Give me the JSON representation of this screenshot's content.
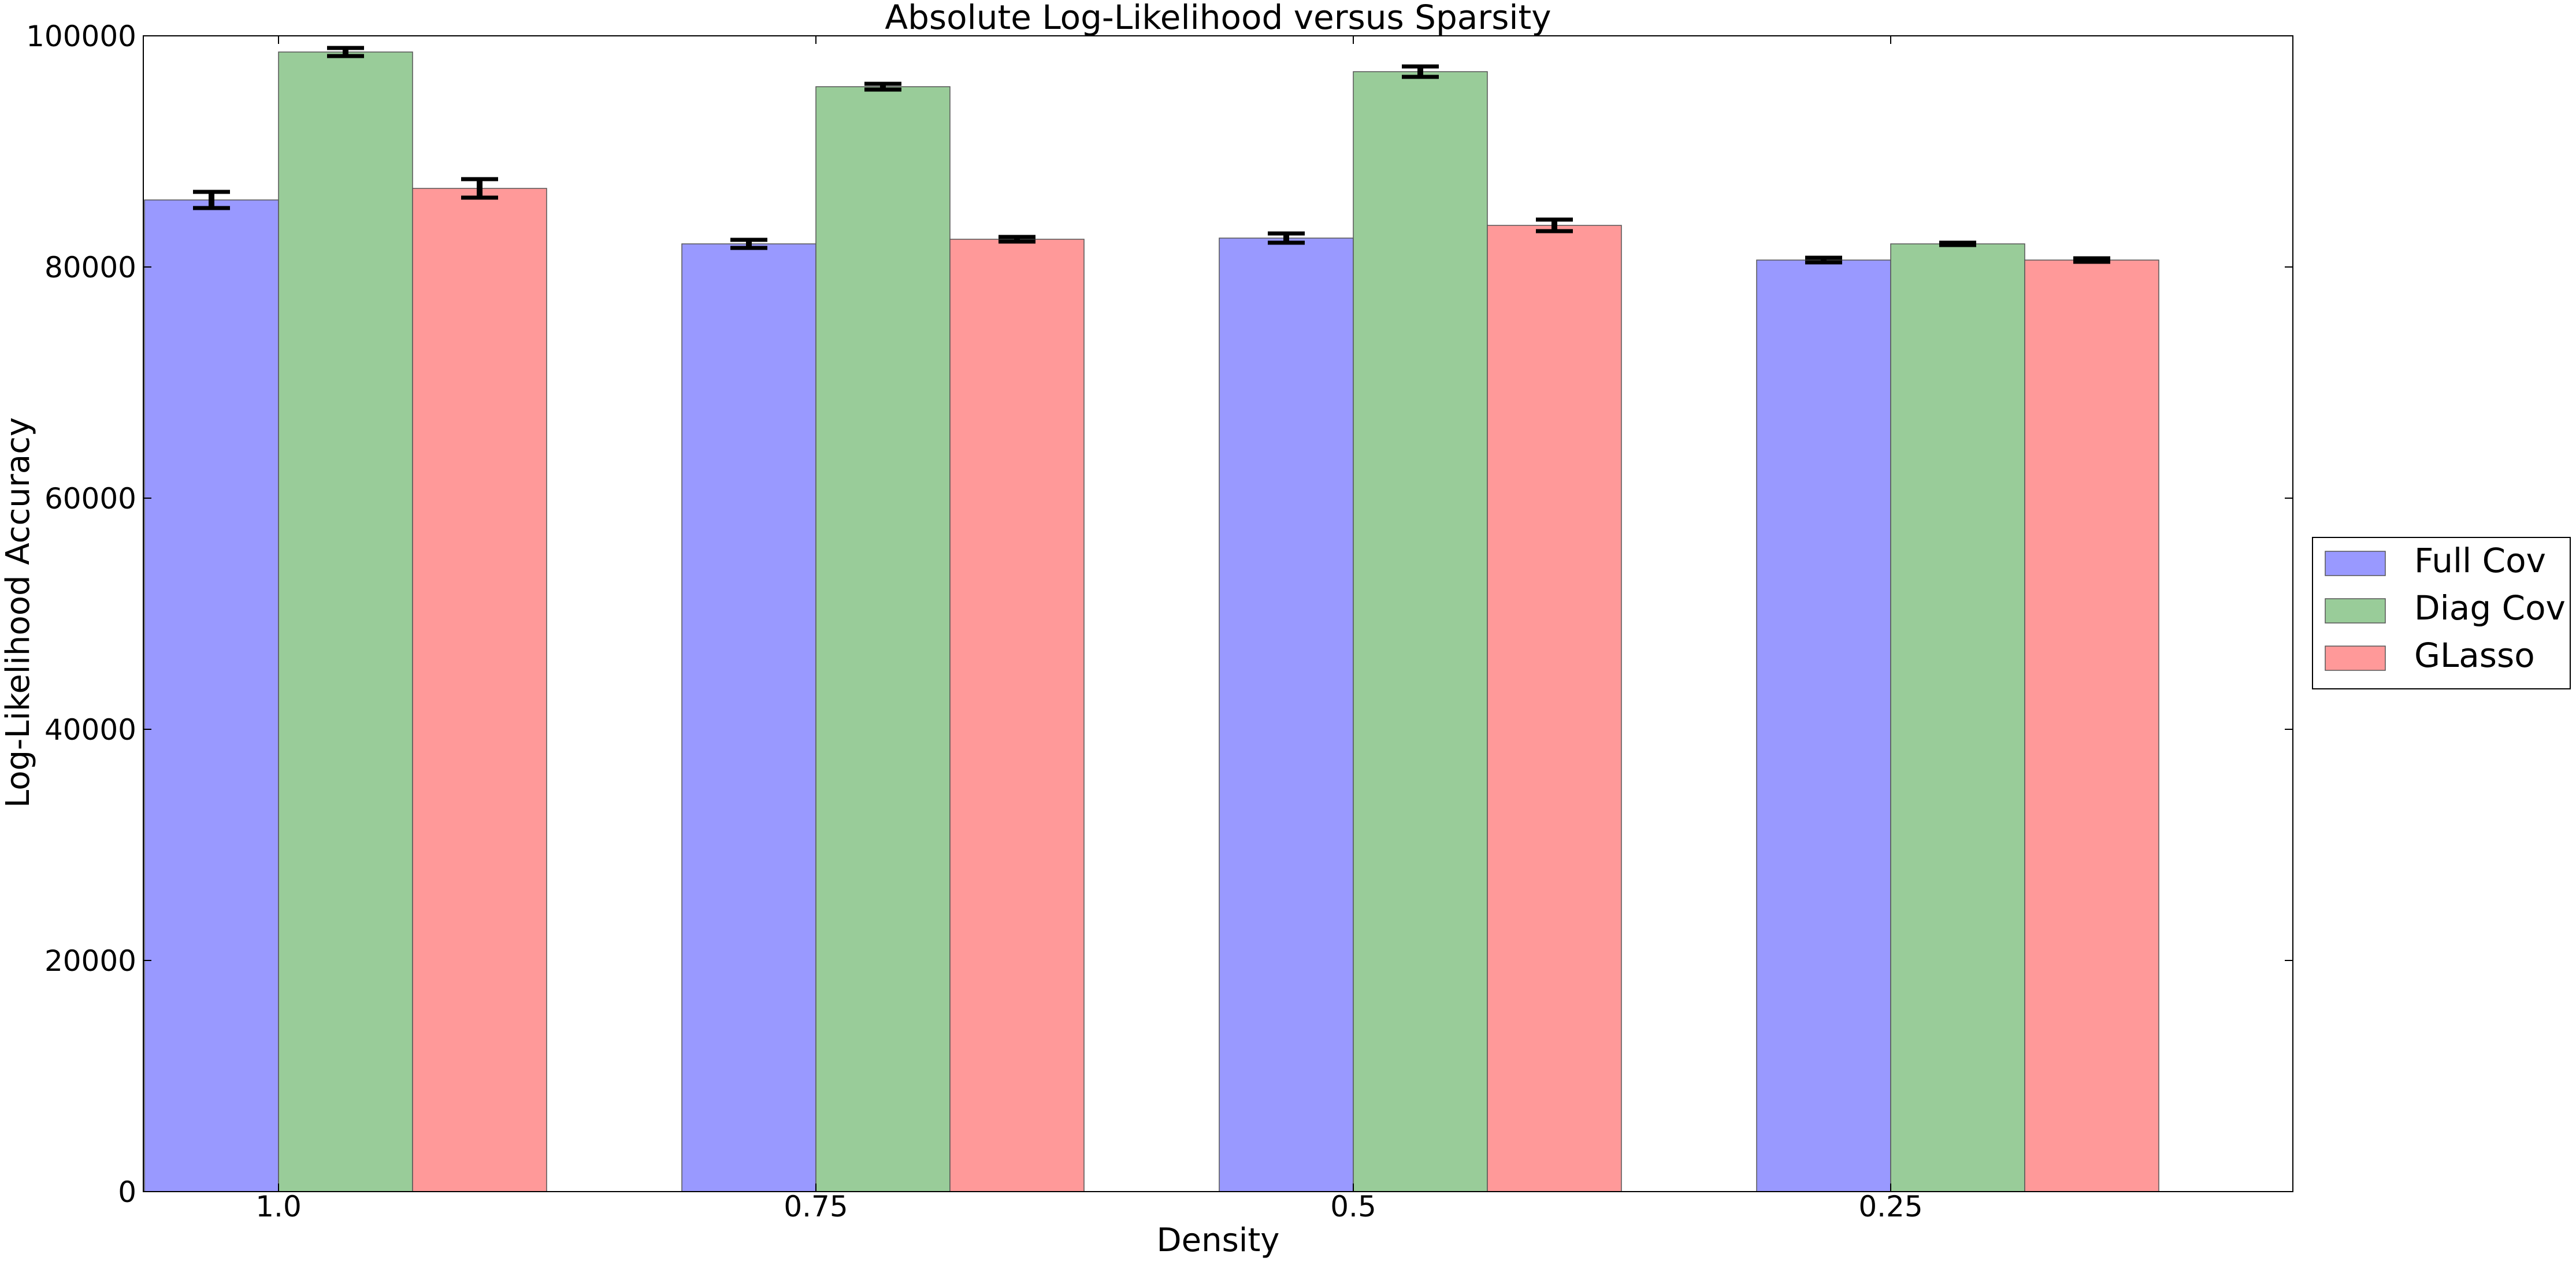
{
  "chart_data": {
    "type": "bar",
    "title": "Absolute Log-Likelihood versus Sparsity",
    "xlabel": "Density",
    "ylabel": "Log-Likelihood Accuracy",
    "categories": [
      "1.0",
      "0.75",
      "0.5",
      "0.25"
    ],
    "ylim": [
      0,
      100000
    ],
    "yticks": [
      0,
      20000,
      40000,
      60000,
      80000,
      100000
    ],
    "ytick_labels": [
      "0",
      "20000",
      "40000",
      "60000",
      "80000",
      "100000"
    ],
    "grid": false,
    "legend_position": "right",
    "error_bars": true,
    "series": [
      {
        "name": "Full Cov",
        "color": "#9999ff",
        "values": [
          85800,
          82000,
          82500,
          80600
        ],
        "errors": [
          700,
          350,
          400,
          200
        ]
      },
      {
        "name": "Diag Cov",
        "color": "#99cc99",
        "values": [
          98600,
          95600,
          96900,
          82000
        ],
        "errors": [
          350,
          250,
          450,
          100
        ]
      },
      {
        "name": "GLasso",
        "color": "#ff9999",
        "values": [
          86800,
          82400,
          83600,
          80600
        ],
        "errors": [
          800,
          200,
          500,
          150
        ]
      }
    ]
  }
}
